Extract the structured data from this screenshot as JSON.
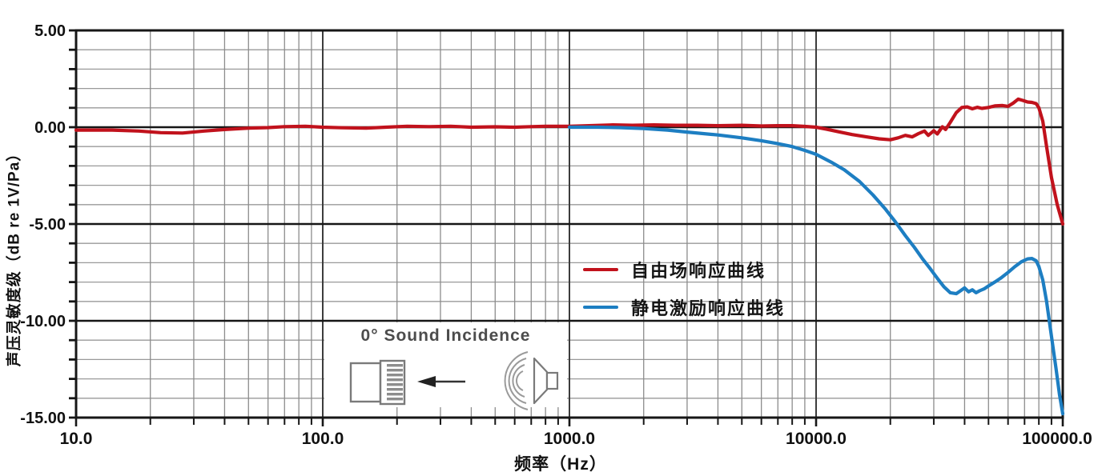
{
  "page": {
    "background": "#ffffff"
  },
  "legend": {
    "items": [
      {
        "label": "自由场响应曲线",
        "color": "#c1121c"
      },
      {
        "label": "静电激励响应曲线",
        "color": "#1d7ec2"
      }
    ]
  },
  "inset": {
    "title": "0° Sound Incidence"
  },
  "chart_data": {
    "type": "line",
    "title": "",
    "xlabel": "频率（Hz）",
    "ylabel": "声压灵敏度级（dB re 1V/Pa）",
    "x_scale": "log",
    "xlim": [
      10,
      100000
    ],
    "ylim": [
      -15,
      5
    ],
    "grid": "both",
    "x_major_ticks": [
      10,
      100,
      1000,
      10000,
      100000
    ],
    "x_tick_labels": [
      "10.0",
      "100.0",
      "1000.0",
      "10000.0",
      "100000.0"
    ],
    "y_major_ticks": [
      5,
      0,
      -5,
      -10,
      -15
    ],
    "y_tick_labels": [
      "5.00",
      "0.00",
      "-5.00",
      "-10.00",
      "-15.00"
    ],
    "y_minor_step": 1,
    "legend_position": "inside-right-middle",
    "colors": {
      "minor_grid": "#999999",
      "decade_grid": "#3c3c3c",
      "major_grid": "#161616",
      "axis": "#161616"
    },
    "series": [
      {
        "name": "自由场响应曲线",
        "color": "#c1121c",
        "points": [
          [
            10,
            -0.15
          ],
          [
            14,
            -0.15
          ],
          [
            18,
            -0.2
          ],
          [
            22,
            -0.28
          ],
          [
            27,
            -0.3
          ],
          [
            33,
            -0.2
          ],
          [
            40,
            -0.12
          ],
          [
            50,
            -0.05
          ],
          [
            60,
            -0.02
          ],
          [
            70,
            0.03
          ],
          [
            85,
            0.05
          ],
          [
            100,
            0.0
          ],
          [
            120,
            -0.03
          ],
          [
            150,
            -0.05
          ],
          [
            180,
            0.0
          ],
          [
            220,
            0.05
          ],
          [
            270,
            0.03
          ],
          [
            330,
            0.05
          ],
          [
            400,
            0.0
          ],
          [
            500,
            0.02
          ],
          [
            600,
            0.0
          ],
          [
            700,
            0.03
          ],
          [
            800,
            0.05
          ],
          [
            1000,
            0.05
          ],
          [
            1200,
            0.08
          ],
          [
            1500,
            0.12
          ],
          [
            1800,
            0.1
          ],
          [
            2200,
            0.12
          ],
          [
            2700,
            0.1
          ],
          [
            3300,
            0.1
          ],
          [
            4000,
            0.08
          ],
          [
            5000,
            0.1
          ],
          [
            6000,
            0.06
          ],
          [
            7000,
            0.08
          ],
          [
            8000,
            0.08
          ],
          [
            9000,
            0.04
          ],
          [
            10000,
            0.0
          ],
          [
            11000,
            -0.1
          ],
          [
            12500,
            -0.25
          ],
          [
            14000,
            -0.38
          ],
          [
            16000,
            -0.5
          ],
          [
            18000,
            -0.6
          ],
          [
            20000,
            -0.65
          ],
          [
            21500,
            -0.55
          ],
          [
            23000,
            -0.42
          ],
          [
            24500,
            -0.5
          ],
          [
            26000,
            -0.33
          ],
          [
            27500,
            -0.2
          ],
          [
            28500,
            -0.42
          ],
          [
            30000,
            -0.18
          ],
          [
            31000,
            -0.35
          ],
          [
            32500,
            0.02
          ],
          [
            33500,
            -0.12
          ],
          [
            35000,
            0.25
          ],
          [
            37000,
            0.75
          ],
          [
            39000,
            1.02
          ],
          [
            41000,
            1.05
          ],
          [
            43000,
            0.95
          ],
          [
            45000,
            1.03
          ],
          [
            47000,
            0.97
          ],
          [
            50000,
            1.02
          ],
          [
            53000,
            1.1
          ],
          [
            57000,
            1.12
          ],
          [
            60000,
            1.08
          ],
          [
            63000,
            1.25
          ],
          [
            66000,
            1.45
          ],
          [
            69000,
            1.38
          ],
          [
            72000,
            1.3
          ],
          [
            75000,
            1.28
          ],
          [
            78000,
            1.22
          ],
          [
            80000,
            1.0
          ],
          [
            83000,
            0.3
          ],
          [
            86000,
            -1.0
          ],
          [
            90000,
            -2.6
          ],
          [
            95000,
            -4.0
          ],
          [
            100000,
            -5.0
          ]
        ]
      },
      {
        "name": "静电激励响应曲线",
        "color": "#1d7ec2",
        "points": [
          [
            1000,
            0.0
          ],
          [
            1300,
            0.0
          ],
          [
            1600,
            -0.02
          ],
          [
            2000,
            -0.07
          ],
          [
            2500,
            -0.15
          ],
          [
            3000,
            -0.25
          ],
          [
            4000,
            -0.4
          ],
          [
            5000,
            -0.55
          ],
          [
            6000,
            -0.7
          ],
          [
            7000,
            -0.85
          ],
          [
            8000,
            -1.0
          ],
          [
            9000,
            -1.2
          ],
          [
            10000,
            -1.4
          ],
          [
            11500,
            -1.8
          ],
          [
            13000,
            -2.2
          ],
          [
            15000,
            -2.8
          ],
          [
            17000,
            -3.5
          ],
          [
            19000,
            -4.2
          ],
          [
            21000,
            -4.9
          ],
          [
            23000,
            -5.6
          ],
          [
            25000,
            -6.2
          ],
          [
            27000,
            -6.8
          ],
          [
            29000,
            -7.3
          ],
          [
            31000,
            -7.8
          ],
          [
            33000,
            -8.25
          ],
          [
            35000,
            -8.55
          ],
          [
            37000,
            -8.6
          ],
          [
            38500,
            -8.45
          ],
          [
            40000,
            -8.3
          ],
          [
            41500,
            -8.5
          ],
          [
            43000,
            -8.4
          ],
          [
            44500,
            -8.55
          ],
          [
            46000,
            -8.45
          ],
          [
            48000,
            -8.35
          ],
          [
            50000,
            -8.2
          ],
          [
            53000,
            -8.0
          ],
          [
            56000,
            -7.8
          ],
          [
            60000,
            -7.5
          ],
          [
            64000,
            -7.2
          ],
          [
            68000,
            -6.95
          ],
          [
            72000,
            -6.8
          ],
          [
            75000,
            -6.78
          ],
          [
            78000,
            -6.9
          ],
          [
            80000,
            -7.2
          ],
          [
            83000,
            -7.9
          ],
          [
            86000,
            -9.0
          ],
          [
            90000,
            -10.8
          ],
          [
            94000,
            -12.5
          ],
          [
            97000,
            -13.8
          ],
          [
            100000,
            -14.8
          ]
        ]
      }
    ]
  }
}
